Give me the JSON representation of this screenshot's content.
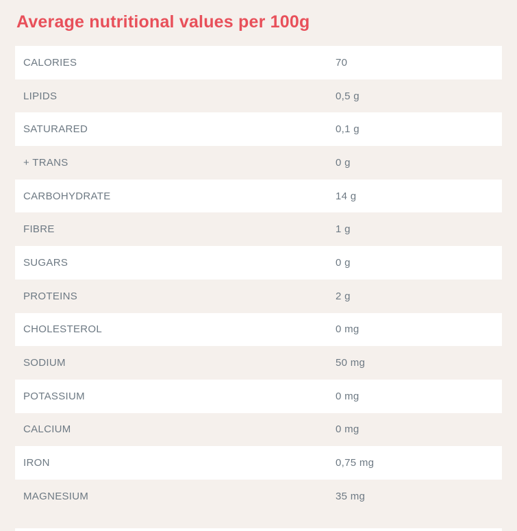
{
  "page": {
    "background_color": "#f5f0ec",
    "accent_color": "#e8505a",
    "text_color": "#6d7983"
  },
  "header": {
    "title": "Average nutritional values per 100g"
  },
  "table": {
    "rows": [
      {
        "label": "CALORIES",
        "value": "70"
      },
      {
        "label": "LIPIDS",
        "value": "0,5 g"
      },
      {
        "label": "SATURARED",
        "value": "0,1 g"
      },
      {
        "label": "+ TRANS",
        "value": "0 g"
      },
      {
        "label": "CARBOHYDRATE",
        "value": "14 g"
      },
      {
        "label": "FIBRE",
        "value": "1 g"
      },
      {
        "label": "SUGARS",
        "value": "0 g"
      },
      {
        "label": "PROTEINS",
        "value": "2 g"
      },
      {
        "label": "CHOLESTEROL",
        "value": "0 mg"
      },
      {
        "label": "SODIUM",
        "value": "50 mg"
      },
      {
        "label": "POTASSIUM",
        "value": "0 mg"
      },
      {
        "label": "CALCIUM",
        "value": "0 mg"
      },
      {
        "label": "IRON",
        "value": "0,75 mg"
      },
      {
        "label": "MAGNESIUM",
        "value": "35 mg"
      }
    ]
  }
}
